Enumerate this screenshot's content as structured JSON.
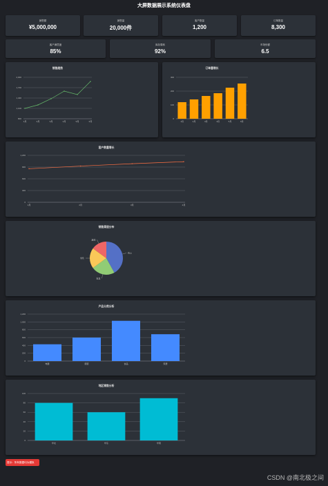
{
  "page": {
    "title": "大屏数据展示系统仪表盘"
  },
  "kpis": [
    {
      "label": "销售额",
      "value": "¥5,000,000"
    },
    {
      "label": "销售量",
      "value": "20,000件"
    },
    {
      "label": "客户数量",
      "value": "1,200"
    },
    {
      "label": "订单数量",
      "value": "8,300"
    },
    {
      "label": "客户满意度",
      "value": "85%"
    },
    {
      "label": "库存周转",
      "value": "92%"
    },
    {
      "label": "市场份额",
      "value": "6.5"
    }
  ],
  "chart_data": [
    {
      "type": "line",
      "title": "销售趋势",
      "x": [
        "1月",
        "2月",
        "3月",
        "4月",
        "5月",
        "6月"
      ],
      "series": [
        {
          "values": [
            1100,
            1200,
            1380,
            1600,
            1500,
            1880
          ]
        }
      ],
      "ylim": [
        800,
        2000
      ],
      "yticks": [
        "800",
        "1,100",
        "1,400",
        "1,700",
        "2,000"
      ],
      "color": "#66bb6a"
    },
    {
      "type": "bar",
      "title": "订单量增长",
      "categories": [
        "1月",
        "2月",
        "3月",
        "4月",
        "5月",
        "6月"
      ],
      "values": [
        120,
        140,
        165,
        185,
        225,
        255
      ],
      "ylim": [
        0,
        300
      ],
      "yticks": [
        "0",
        "100",
        "200",
        "300"
      ],
      "color": "#ffa000"
    },
    {
      "type": "line",
      "title": "客户数量增长",
      "x": [
        "1月",
        "2月",
        "3月",
        "4月"
      ],
      "series": [
        {
          "values": [
            1000,
            1080,
            1150,
            1210
          ]
        }
      ],
      "ylim": [
        0,
        1400
      ],
      "yticks": [
        "0",
        "300",
        "600",
        "900",
        "1,200"
      ],
      "color": "#ff7043"
    },
    {
      "type": "pie",
      "title": "销售渠道分布",
      "slices": [
        {
          "label": "线上",
          "value": 42,
          "color": "#5470c6"
        },
        {
          "label": "批发",
          "value": 23,
          "color": "#91cc75"
        },
        {
          "label": "零售",
          "value": 20,
          "color": "#fac858"
        },
        {
          "label": "其他",
          "value": 15,
          "color": "#ee6666"
        }
      ]
    },
    {
      "type": "bar",
      "title": "产品分类分析",
      "categories": [
        "电器",
        "服装",
        "食品",
        "家居"
      ],
      "values": [
        500,
        700,
        1200,
        800
      ],
      "ylim": [
        0,
        1400
      ],
      "yticks": [
        "0",
        "200",
        "400",
        "600",
        "800",
        "1,000",
        "1,200"
      ],
      "color": "#448aff"
    },
    {
      "type": "bar",
      "title": "地区销售分析",
      "categories": [
        "华北",
        "华东",
        "华南"
      ],
      "values": [
        80,
        60,
        90
      ],
      "ylim": [
        0,
        100
      ],
      "yticks": [
        "0",
        "20",
        "40",
        "60",
        "80",
        "100"
      ],
      "color": "#00bcd4"
    }
  ],
  "footer": {
    "badge": "提示：所有数据均为模拟",
    "watermark": "CSDN @南北极之间"
  }
}
